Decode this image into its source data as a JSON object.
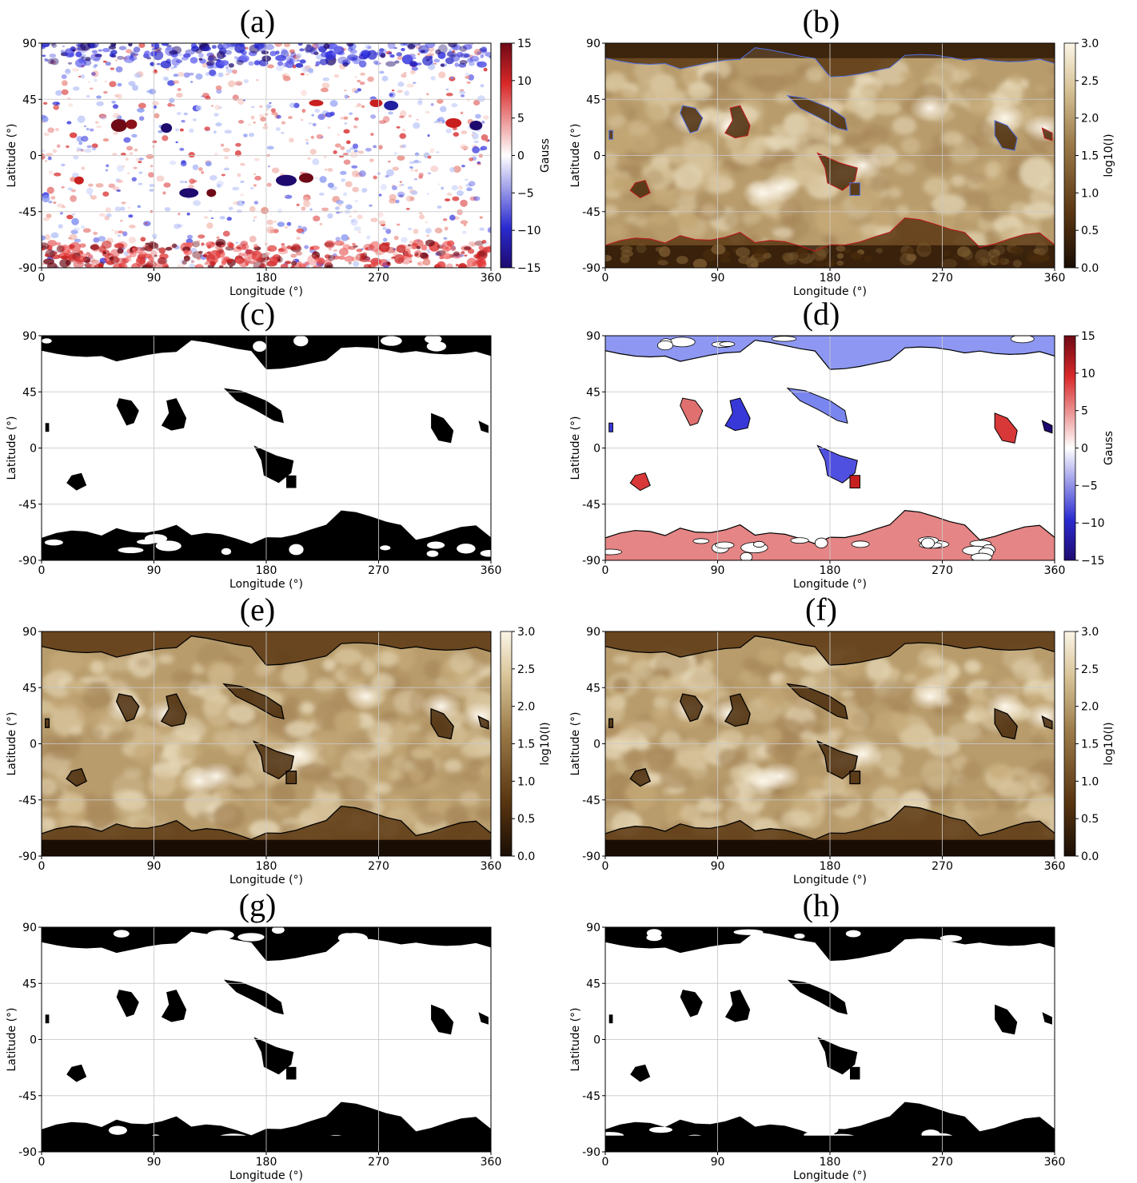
{
  "figure": {
    "panels": [
      {
        "id": "a",
        "title": "(a)",
        "kind": "magnetogram"
      },
      {
        "id": "b",
        "title": "(b)",
        "kind": "euv-contour-bw"
      },
      {
        "id": "c",
        "title": "(c)",
        "kind": "mask"
      },
      {
        "id": "d",
        "title": "(d)",
        "kind": "masked-magnetogram"
      },
      {
        "id": "e",
        "title": "(e)",
        "kind": "euv-contour-k"
      },
      {
        "id": "f",
        "title": "(f)",
        "kind": "euv-contour-k"
      },
      {
        "id": "g",
        "title": "(g)",
        "kind": "mask"
      },
      {
        "id": "h",
        "title": "(h)",
        "kind": "mask"
      }
    ],
    "colors": {
      "bwr_low": "#1e0a6e",
      "bwr_mid": "#ffffff",
      "bwr_high": "#6e0a16",
      "euv_low": "#1a0d04",
      "euv_mid": "#9a7a48",
      "euv_high": "#fbf5e6",
      "mask_fill": "#000000",
      "grid": "#c8c8c8",
      "contour_red": "#c0141e",
      "contour_blue": "#5070e0",
      "contour_black": "#000000"
    }
  },
  "chart_data": [
    {
      "type": "heatmap",
      "title": "(a)",
      "xlabel": "Longitude (°)",
      "ylabel": "Latitude (°)",
      "xlim": [
        0,
        360
      ],
      "ylim": [
        -90,
        90
      ],
      "xticks": [
        0,
        90,
        180,
        270,
        360
      ],
      "yticks": [
        -90,
        -45,
        0,
        45,
        90
      ],
      "grid": true,
      "colorbar": {
        "label": "Gauss",
        "range": [
          -15,
          15
        ],
        "ticks": [
          -15,
          -10,
          -5,
          0,
          5,
          10,
          15
        ],
        "cmap": "blue-white-red"
      }
    },
    {
      "type": "heatmap",
      "title": "(b)",
      "xlabel": "Longitude (°)",
      "ylabel": "Latitude (°)",
      "xlim": [
        0,
        360
      ],
      "ylim": [
        -90,
        90
      ],
      "xticks": [
        0,
        90,
        180,
        270,
        360
      ],
      "yticks": [
        -90,
        -45,
        0,
        45,
        90
      ],
      "grid": true,
      "colorbar": {
        "label": "log10(I)",
        "range": [
          0.0,
          3.0
        ],
        "ticks": [
          "0.0",
          "0.5",
          "1.0",
          "1.5",
          "2.0",
          "2.5",
          "3.0"
        ],
        "cmap": "brown-cream"
      }
    },
    {
      "type": "heatmap",
      "title": "(c)",
      "xlabel": "Longitude (°)",
      "ylabel": "Latitude (°)",
      "xlim": [
        0,
        360
      ],
      "ylim": [
        -90,
        90
      ],
      "xticks": [
        0,
        90,
        180,
        270,
        360
      ],
      "yticks": [
        -90,
        -45,
        0,
        45,
        90
      ],
      "grid": true
    },
    {
      "type": "heatmap",
      "title": "(d)",
      "xlabel": "Longitude (°)",
      "ylabel": "Latitude (°)",
      "xlim": [
        0,
        360
      ],
      "ylim": [
        -90,
        90
      ],
      "xticks": [
        0,
        90,
        180,
        270,
        360
      ],
      "yticks": [
        -90,
        -45,
        0,
        45,
        90
      ],
      "grid": true,
      "colorbar": {
        "label": "Gauss",
        "range": [
          -15,
          15
        ],
        "ticks": [
          -15,
          -10,
          -5,
          0,
          5,
          10,
          15
        ],
        "cmap": "blue-white-red"
      }
    },
    {
      "type": "heatmap",
      "title": "(e)",
      "xlabel": "Longitude (°)",
      "ylabel": "Latitude (°)",
      "xlim": [
        0,
        360
      ],
      "ylim": [
        -90,
        90
      ],
      "xticks": [
        0,
        90,
        180,
        270,
        360
      ],
      "yticks": [
        -90,
        -45,
        0,
        45,
        90
      ],
      "grid": true,
      "colorbar": {
        "label": "log10(I)",
        "range": [
          0.0,
          3.0
        ],
        "ticks": [
          "0.0",
          "0.5",
          "1.0",
          "1.5",
          "2.0",
          "2.5",
          "3.0"
        ],
        "cmap": "brown-cream"
      }
    },
    {
      "type": "heatmap",
      "title": "(f)",
      "xlabel": "Longitude (°)",
      "ylabel": "Latitude (°)",
      "xlim": [
        0,
        360
      ],
      "ylim": [
        -90,
        90
      ],
      "xticks": [
        0,
        90,
        180,
        270,
        360
      ],
      "yticks": [
        -90,
        -45,
        0,
        45,
        90
      ],
      "grid": true,
      "colorbar": {
        "label": "log10(I)",
        "range": [
          0.0,
          3.0
        ],
        "ticks": [
          "0.0",
          "0.5",
          "1.0",
          "1.5",
          "2.0",
          "2.5",
          "3.0"
        ],
        "cmap": "brown-cream"
      }
    },
    {
      "type": "heatmap",
      "title": "(g)",
      "xlabel": "Longitude (°)",
      "ylabel": "Latitude (°)",
      "xlim": [
        0,
        360
      ],
      "ylim": [
        -90,
        90
      ],
      "xticks": [
        0,
        90,
        180,
        270,
        360
      ],
      "yticks": [
        -90,
        -45,
        0,
        45,
        90
      ],
      "grid": true
    },
    {
      "type": "heatmap",
      "title": "(h)",
      "xlabel": "Longitude (°)",
      "ylabel": "Latitude (°)",
      "xlim": [
        0,
        360
      ],
      "ylim": [
        -90,
        90
      ],
      "xticks": [
        0,
        90,
        180,
        270,
        360
      ],
      "yticks": [
        -90,
        -45,
        0,
        45,
        90
      ],
      "grid": true
    }
  ]
}
